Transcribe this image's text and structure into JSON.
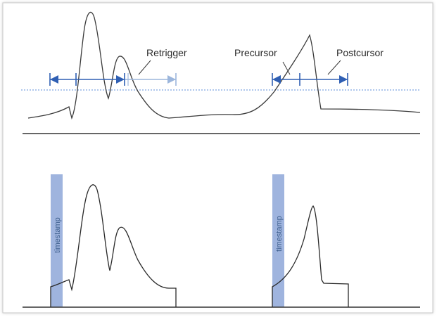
{
  "labels": {
    "retrigger": "Retrigger",
    "precursor": "Precursor",
    "postcursor": "Postcursor",
    "timestamp_left": "timestamp",
    "timestamp_right": "timestamp"
  },
  "colors": {
    "frame_border": "#c8c8c8",
    "signal": "#3a3a3a",
    "baseline": "#333333",
    "arrow": "#2f5fb3",
    "arrow_light": "#9cb6dc",
    "threshold": "#7ea4e0",
    "timestamp_bar": "#9fb4de"
  }
}
